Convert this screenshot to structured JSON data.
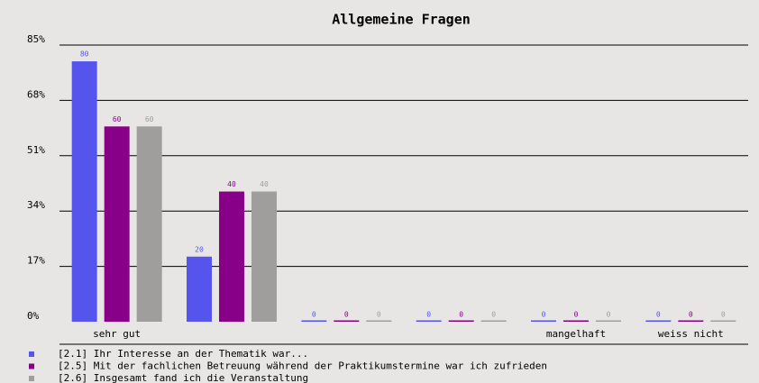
{
  "chart_data": {
    "type": "bar",
    "title": "Allgemeine Fragen",
    "categories": [
      "sehr gut",
      null,
      null,
      null,
      "mangelhaft",
      "weiss nicht"
    ],
    "series": [
      {
        "name": "[2.1] Ihr Interesse an der Thematik war...",
        "color": "#5555ee",
        "values": [
          80,
          20,
          0,
          0,
          0,
          0
        ]
      },
      {
        "name": "[2.5] Mit der fachlichen Betreuung während der Praktikumstermine war ich zufrieden",
        "color": "#880088",
        "values": [
          60,
          40,
          0,
          0,
          0,
          0
        ]
      },
      {
        "name": "[2.6] Insgesamt fand ich die Veranstaltung",
        "color": "#a09e9c",
        "values": [
          60,
          40,
          0,
          0,
          0,
          0
        ]
      }
    ],
    "ylim": [
      0,
      85
    ],
    "yticks": [
      {
        "value": 0,
        "label": "0%"
      },
      {
        "value": 17,
        "label": "17%"
      },
      {
        "value": 34,
        "label": "34%"
      },
      {
        "value": 51,
        "label": "51%"
      },
      {
        "value": 68,
        "label": "68%"
      },
      {
        "value": 85,
        "label": "85%"
      }
    ],
    "grid": true
  }
}
